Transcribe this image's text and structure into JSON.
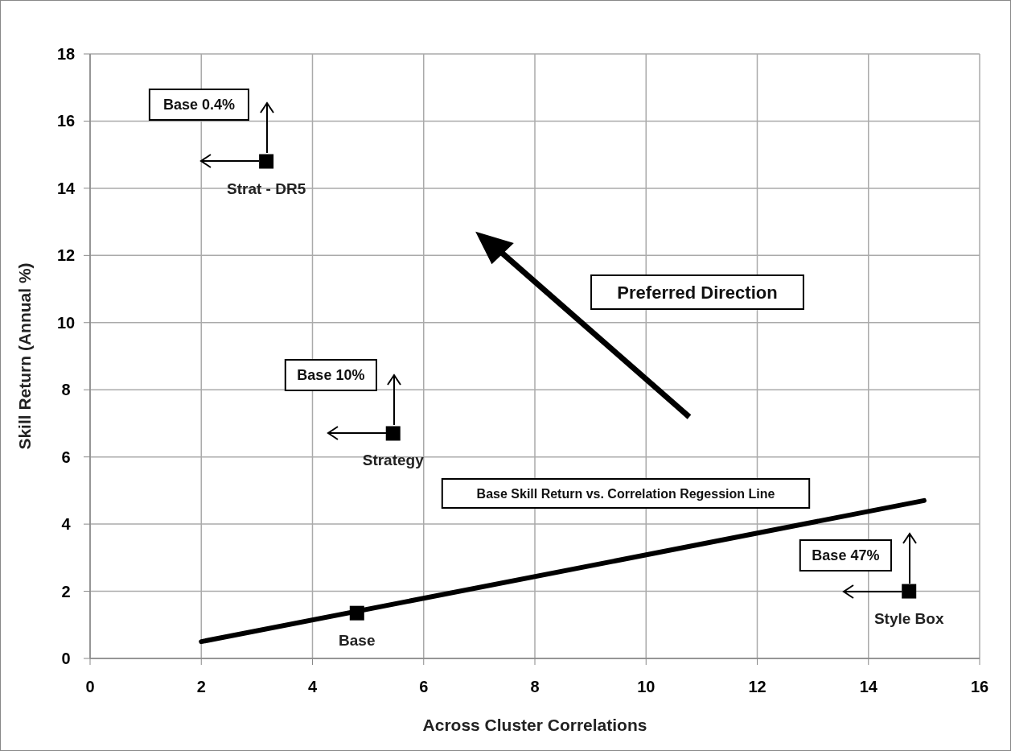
{
  "chart_data": {
    "type": "scatter",
    "xlabel": "Across Cluster Correlations",
    "ylabel": "Skill Return (Annual %)",
    "xlim": [
      0,
      16
    ],
    "xticks": [
      0,
      2,
      4,
      6,
      8,
      10,
      12,
      14,
      16
    ],
    "ylim": [
      0,
      18
    ],
    "yticks": [
      0,
      2,
      4,
      6,
      8,
      10,
      12,
      14,
      16,
      18
    ],
    "grid": true,
    "marker": "square",
    "series": [
      {
        "type": "line",
        "marker": "none",
        "color": "#000000",
        "x": [
          2,
          15
        ],
        "values": [
          0.5,
          4.7
        ]
      },
      {
        "name": "Strat - DR5",
        "color": "#000000",
        "x": [
          3.17
        ],
        "values": [
          14.8
        ]
      },
      {
        "name": "Strategy",
        "color": "#000000",
        "x": [
          5.45
        ],
        "values": [
          6.7
        ]
      },
      {
        "name": "Base",
        "color": "#000000",
        "x": [
          4.8
        ],
        "values": [
          1.35
        ]
      },
      {
        "name": "Style Box",
        "color": "#000000",
        "x": [
          14.73
        ],
        "values": [
          2.0
        ]
      }
    ],
    "annotations": [
      "Base 0.4%",
      "Base 10%",
      "Base 47%",
      "Preferred Direction",
      "Base Skill Return vs. Correlation Regession Line"
    ]
  }
}
